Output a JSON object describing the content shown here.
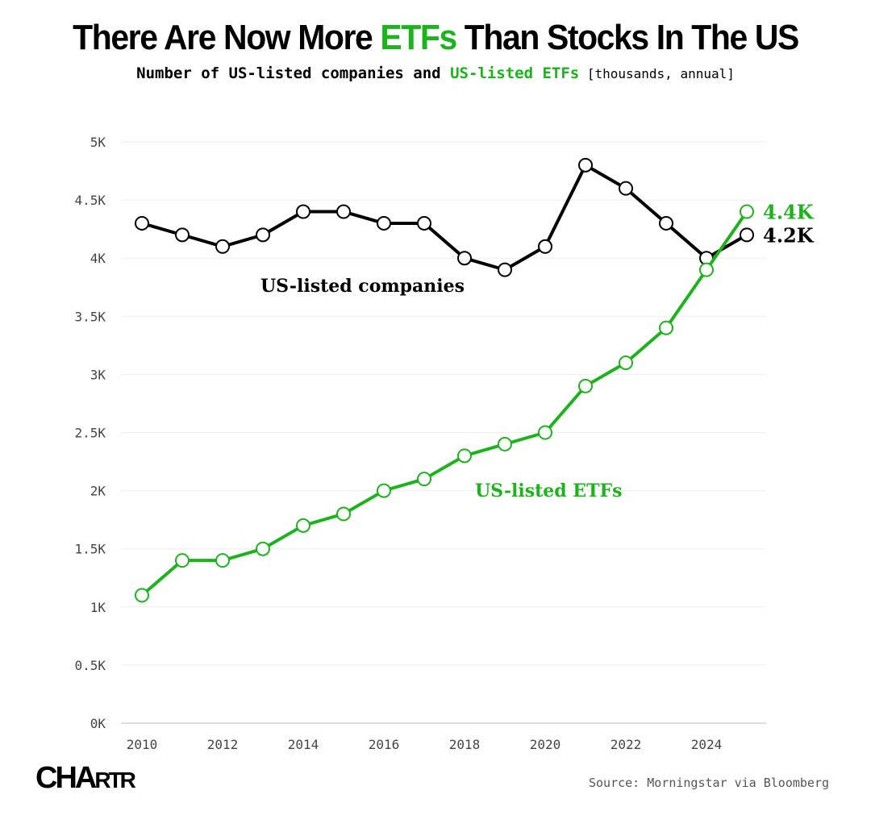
{
  "title": {
    "part1": "There Are Now More ",
    "highlight": "ETFs",
    "part2": " Than Stocks In The US"
  },
  "subtitle": {
    "part1": "Number of US-listed companies and ",
    "highlight": "US-listed ETFs",
    "part2": " [thousands, annual]"
  },
  "source": "Source: Morningstar via Bloomberg",
  "logo": "CHARTR",
  "colors": {
    "companies": "#000000",
    "etfs": "#1db31d"
  },
  "chart_data": {
    "type": "line",
    "title": "There Are Now More ETFs Than Stocks In The US",
    "ylabel": "thousands",
    "ylim": [
      0,
      5
    ],
    "yticks": [
      {
        "v": 0,
        "label": "0K"
      },
      {
        "v": 0.5,
        "label": "0.5K"
      },
      {
        "v": 1,
        "label": "1K"
      },
      {
        "v": 1.5,
        "label": "1.5K"
      },
      {
        "v": 2,
        "label": "2K"
      },
      {
        "v": 2.5,
        "label": "2.5K"
      },
      {
        "v": 3,
        "label": "3K"
      },
      {
        "v": 3.5,
        "label": "3.5K"
      },
      {
        "v": 4,
        "label": "4K"
      },
      {
        "v": 4.5,
        "label": "4.5K"
      },
      {
        "v": 5,
        "label": "5K"
      }
    ],
    "xticks": [
      2010,
      2012,
      2014,
      2016,
      2018,
      2020,
      2022,
      2024
    ],
    "x": [
      2010,
      2011,
      2012,
      2013,
      2014,
      2015,
      2016,
      2017,
      2018,
      2019,
      2020,
      2021,
      2022,
      2023,
      2024,
      2025
    ],
    "series": [
      {
        "name": "US-listed companies",
        "color": "#000000",
        "end_label": "4.2K",
        "values": [
          4.3,
          4.2,
          4.1,
          4.2,
          4.4,
          4.4,
          4.3,
          4.3,
          4.0,
          3.9,
          4.1,
          4.8,
          4.6,
          4.3,
          4.0,
          4.2
        ]
      },
      {
        "name": "US-listed ETFs",
        "color": "#1db31d",
        "end_label": "4.4K",
        "values": [
          1.1,
          1.4,
          1.4,
          1.5,
          1.7,
          1.8,
          2.0,
          2.1,
          2.3,
          2.4,
          2.5,
          2.9,
          3.1,
          3.4,
          3.9,
          4.4
        ]
      }
    ]
  }
}
